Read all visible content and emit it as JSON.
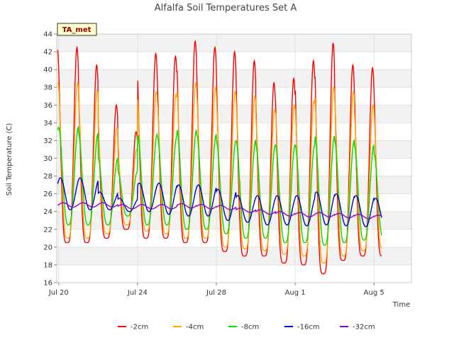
{
  "chart_data": {
    "type": "line",
    "title": "Alfalfa Soil Temperatures Set A",
    "xlabel": "Time",
    "ylabel": "Soil Temperature (C)",
    "site_label": "TA_met",
    "ylim": [
      16,
      44
    ],
    "yticks": [
      16,
      18,
      20,
      22,
      24,
      26,
      28,
      30,
      32,
      34,
      36,
      38,
      40,
      42,
      44
    ],
    "xlim_days": [
      -0.1,
      17.9
    ],
    "xticks": [
      {
        "day": 0,
        "label": "Jul 20"
      },
      {
        "day": 4,
        "label": "Jul 24"
      },
      {
        "day": 8,
        "label": "Jul 28"
      },
      {
        "day": 12,
        "label": "Aug 1"
      },
      {
        "day": 16,
        "label": "Aug 5"
      }
    ],
    "grid": true,
    "legend_position": "bottom",
    "days": [
      "Jul 20",
      "Jul 21",
      "Jul 22",
      "Jul 23",
      "Jul 24",
      "Jul 25",
      "Jul 26",
      "Jul 27",
      "Jul 28",
      "Jul 29",
      "Jul 30",
      "Jul 31",
      "Aug 1",
      "Aug 2",
      "Aug 3",
      "Aug 4",
      "Aug 5"
    ],
    "series": [
      {
        "name": "-2cm",
        "color": "#ff0000",
        "daily_max": [
          42.5,
          40.5,
          36.0,
          33.0,
          41.8,
          41.5,
          43.2,
          42.5,
          42.0,
          41.0,
          38.5,
          39.0,
          41.0,
          43.0,
          40.5,
          40.2,
          40.2
        ],
        "daily_min": [
          20.5,
          20.5,
          21.0,
          22.0,
          21.0,
          21.0,
          20.5,
          20.5,
          19.5,
          19.0,
          19.0,
          18.2,
          18.0,
          17.0,
          18.5,
          19.0,
          19.0
        ]
      },
      {
        "name": "-4cm",
        "color": "#ffa500",
        "daily_max": [
          38.5,
          37.7,
          33.5,
          31.0,
          37.5,
          37.2,
          38.5,
          38.0,
          37.5,
          37.0,
          35.5,
          36.0,
          36.5,
          38.0,
          37.5,
          36.0,
          35.8
        ],
        "daily_min": [
          21.0,
          21.0,
          21.5,
          22.5,
          21.8,
          21.5,
          21.0,
          21.0,
          20.0,
          19.8,
          19.6,
          19.2,
          19.0,
          18.2,
          19.0,
          19.6,
          19.8
        ]
      },
      {
        "name": "-8cm",
        "color": "#00dd00",
        "daily_max": [
          33.5,
          32.8,
          30.0,
          28.5,
          32.7,
          32.5,
          33.2,
          32.7,
          32.0,
          32.0,
          31.5,
          31.5,
          31.5,
          32.5,
          32.0,
          31.5,
          30.5
        ],
        "daily_min": [
          22.5,
          22.5,
          22.5,
          23.5,
          22.5,
          22.5,
          22.0,
          22.0,
          21.5,
          21.0,
          21.0,
          20.5,
          20.5,
          20.2,
          20.5,
          20.8,
          21.0
        ]
      },
      {
        "name": "-16cm",
        "color": "#0000cc",
        "daily_max": [
          27.8,
          27.8,
          26.2,
          25.5,
          27.2,
          27.2,
          27.0,
          27.0,
          26.5,
          25.8,
          25.8,
          25.8,
          25.8,
          26.2,
          26.0,
          25.8,
          25.5
        ],
        "daily_min": [
          24.2,
          24.2,
          24.2,
          24.0,
          24.0,
          23.7,
          23.5,
          23.5,
          23.0,
          22.8,
          22.5,
          22.5,
          22.4,
          22.5,
          22.4,
          22.3,
          22.4
        ]
      },
      {
        "name": "-32cm",
        "color": "#9400d3",
        "daily_max": [
          25.0,
          25.0,
          25.0,
          24.8,
          24.8,
          24.8,
          24.9,
          24.8,
          24.7,
          24.4,
          24.2,
          24.0,
          23.9,
          23.9,
          23.8,
          23.7,
          23.6
        ],
        "daily_min": [
          24.5,
          24.5,
          24.5,
          24.3,
          24.3,
          24.3,
          24.4,
          24.3,
          24.2,
          23.9,
          23.7,
          23.5,
          23.4,
          23.4,
          23.3,
          23.2,
          23.2
        ]
      }
    ]
  }
}
